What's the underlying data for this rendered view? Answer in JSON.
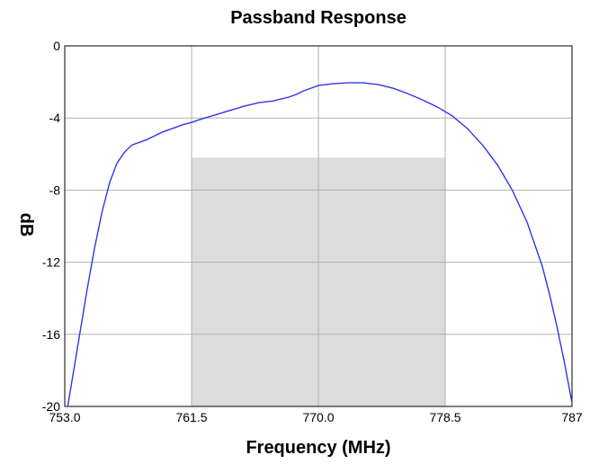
{
  "chart_data": {
    "type": "line",
    "title": "Passband Response",
    "xlabel": "Frequency (MHz)",
    "ylabel": "dB",
    "xlim": [
      753.0,
      787.0
    ],
    "ylim": [
      -20,
      0
    ],
    "x_ticks": [
      753.0,
      761.5,
      770.0,
      778.5,
      787
    ],
    "x_tick_labels": [
      "753.0",
      "761.5",
      "770.0",
      "778.5",
      "787"
    ],
    "y_ticks": [
      0,
      -4,
      -8,
      -12,
      -16,
      -20
    ],
    "y_tick_labels": [
      "0",
      "-4",
      "-8",
      "-12",
      "-16",
      "-20"
    ],
    "grid": true,
    "passband_region": {
      "x_start": 761.5,
      "x_end": 778.5,
      "y_top": -6.2,
      "y_bottom": -20,
      "color": "#dcdcdc"
    },
    "series": [
      {
        "color": "#3333ee",
        "x": [
          753.2,
          753.5,
          754.0,
          754.5,
          755.0,
          755.5,
          756.0,
          756.5,
          757.0,
          757.5,
          758.0,
          758.5,
          759.0,
          759.5,
          760.0,
          760.5,
          761.0,
          761.5,
          762.0,
          763.0,
          764.0,
          765.0,
          766.0,
          767.0,
          768.0,
          768.5,
          769.0,
          769.5,
          770.0,
          771.0,
          772.0,
          773.0,
          774.0,
          775.0,
          776.0,
          777.0,
          778.0,
          779.0,
          780.0,
          781.0,
          782.0,
          783.0,
          784.0,
          785.0,
          785.5,
          786.0,
          786.5,
          787.0
        ],
        "y": [
          -20.0,
          -18.5,
          -16.0,
          -13.5,
          -11.2,
          -9.2,
          -7.6,
          -6.5,
          -5.9,
          -5.5,
          -5.35,
          -5.2,
          -5.0,
          -4.8,
          -4.65,
          -4.5,
          -4.35,
          -4.25,
          -4.1,
          -3.85,
          -3.6,
          -3.35,
          -3.15,
          -3.05,
          -2.85,
          -2.7,
          -2.5,
          -2.35,
          -2.2,
          -2.1,
          -2.05,
          -2.05,
          -2.15,
          -2.35,
          -2.65,
          -3.0,
          -3.4,
          -3.9,
          -4.6,
          -5.5,
          -6.6,
          -8.0,
          -9.8,
          -12.2,
          -13.8,
          -15.6,
          -17.6,
          -19.8
        ]
      }
    ]
  }
}
